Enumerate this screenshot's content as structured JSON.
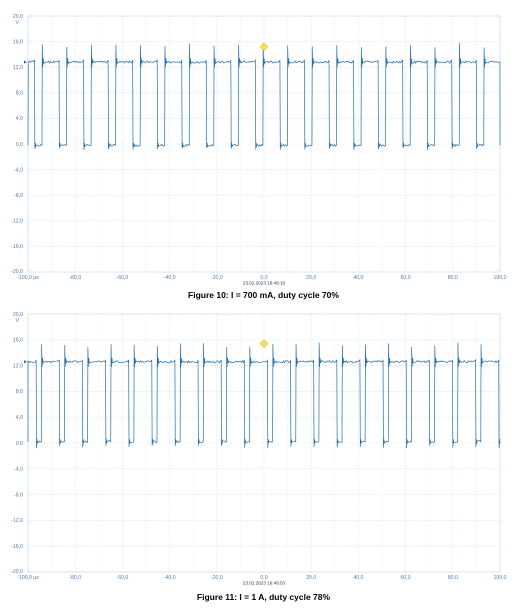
{
  "chart_data": [
    {
      "type": "line",
      "caption": "Figure 10: I = 700 mA, duty cycle 70%",
      "ylabel": "V",
      "xlabel": "",
      "x_unit": "µs",
      "timestamp": "23.02.2023 16:48:16",
      "xlim": [
        -100,
        100
      ],
      "ylim": [
        -20,
        20
      ],
      "x_ticks": [
        "-100,0 µs",
        "-80,0",
        "-60,0",
        "-40,0",
        "-20,0",
        "0,0",
        "20,0",
        "40,0",
        "60,0",
        "80,0",
        "100,0"
      ],
      "y_ticks": [
        "20,0",
        "16,0",
        "12,0",
        "8,0",
        "4,0",
        "0,0",
        "-4,0",
        "-8,0",
        "-12,0",
        "-16,0",
        "-20,0"
      ],
      "y_unit_label": "V",
      "grid": true,
      "line_color": "#1f6fb4",
      "trigger_marker": {
        "x": 0,
        "y": 15.2,
        "color": "#f4e04d"
      },
      "level_marker": {
        "y": 12.8
      },
      "period_us": 10.4,
      "phase_us": -97.2,
      "duty_cycle": 0.7,
      "high_v": 12.8,
      "low_v": -0.2,
      "overshoot_v": 15.8,
      "undershoot_v": -0.6
    },
    {
      "type": "line",
      "caption": "Figure 11: I = 1 A, duty cycle 78%",
      "ylabel": "V",
      "xlabel": "",
      "x_unit": "µs",
      "timestamp": "23.02.2023 16:49:53",
      "xlim": [
        -100,
        100
      ],
      "ylim": [
        -20,
        20
      ],
      "x_ticks": [
        "-100,0 µs",
        "-80,0",
        "-60,0",
        "-40,0",
        "-20,0",
        "0,0",
        "20,0",
        "40,0",
        "60,0",
        "80,0",
        "100,0"
      ],
      "y_ticks": [
        "20,0",
        "16,0",
        "12,0",
        "8,0",
        "4,0",
        "0,0",
        "-4,0",
        "-8,0",
        "-12,0",
        "-16,0",
        "-20,0"
      ],
      "y_unit_label": "V",
      "grid": true,
      "line_color": "#1f6fb4",
      "trigger_marker": {
        "x": 0,
        "y": 15.4,
        "color": "#f4e04d"
      },
      "level_marker": {
        "y": 12.6
      },
      "period_us": 9.8,
      "phase_us": -96.5,
      "duty_cycle": 0.78,
      "high_v": 12.6,
      "low_v": 0.2,
      "overshoot_v": 15.6,
      "undershoot_v": -0.4
    }
  ]
}
